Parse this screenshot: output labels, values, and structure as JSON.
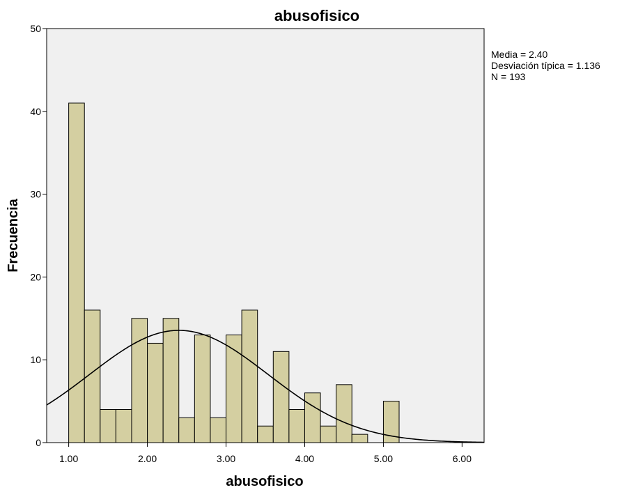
{
  "chart_data": {
    "type": "bar",
    "title": "abusofisico",
    "xlabel": "abusofisico",
    "ylabel": "Frecuencia",
    "xlim": [
      0.72,
      6.28
    ],
    "ylim": [
      0,
      50
    ],
    "x_ticks": [
      1,
      2,
      3,
      4,
      5,
      6
    ],
    "x_tick_labels": [
      "1.00",
      "2.00",
      "3.00",
      "4.00",
      "5.00",
      "6.00"
    ],
    "y_ticks": [
      0,
      10,
      20,
      30,
      40,
      50
    ],
    "y_tick_labels": [
      "0",
      "10",
      "20",
      "30",
      "40",
      "50"
    ],
    "grid": false,
    "bars": [
      {
        "x0": 1.0,
        "x1": 1.2,
        "count": 41
      },
      {
        "x0": 1.2,
        "x1": 1.4,
        "count": 16
      },
      {
        "x0": 1.4,
        "x1": 1.6,
        "count": 4
      },
      {
        "x0": 1.6,
        "x1": 1.8,
        "count": 4
      },
      {
        "x0": 1.8,
        "x1": 2.0,
        "count": 15
      },
      {
        "x0": 2.0,
        "x1": 2.2,
        "count": 12
      },
      {
        "x0": 2.2,
        "x1": 2.4,
        "count": 15
      },
      {
        "x0": 2.4,
        "x1": 2.6,
        "count": 3
      },
      {
        "x0": 2.6,
        "x1": 2.8,
        "count": 13
      },
      {
        "x0": 2.8,
        "x1": 3.0,
        "count": 3
      },
      {
        "x0": 3.0,
        "x1": 3.2,
        "count": 13
      },
      {
        "x0": 3.2,
        "x1": 3.4,
        "count": 16
      },
      {
        "x0": 3.4,
        "x1": 3.6,
        "count": 2
      },
      {
        "x0": 3.6,
        "x1": 3.8,
        "count": 11
      },
      {
        "x0": 3.8,
        "x1": 4.0,
        "count": 4
      },
      {
        "x0": 4.0,
        "x1": 4.2,
        "count": 6
      },
      {
        "x0": 4.2,
        "x1": 4.4,
        "count": 2
      },
      {
        "x0": 4.4,
        "x1": 4.6,
        "count": 7
      },
      {
        "x0": 4.6,
        "x1": 4.8,
        "count": 1
      },
      {
        "x0": 5.0,
        "x1": 5.2,
        "count": 5
      }
    ],
    "normal_curve": {
      "mean": 2.4,
      "sd": 1.136,
      "n": 193,
      "bin_width": 0.2
    },
    "stats": {
      "mean_text": "Media = 2.40",
      "sd_text": "Desviación típica = 1.136",
      "n_text": "N = 193"
    },
    "colors": {
      "bar_fill": "#d4cfa1",
      "bar_stroke": "#000000",
      "plot_background": "#f0f0f0",
      "curve": "#000000"
    }
  }
}
